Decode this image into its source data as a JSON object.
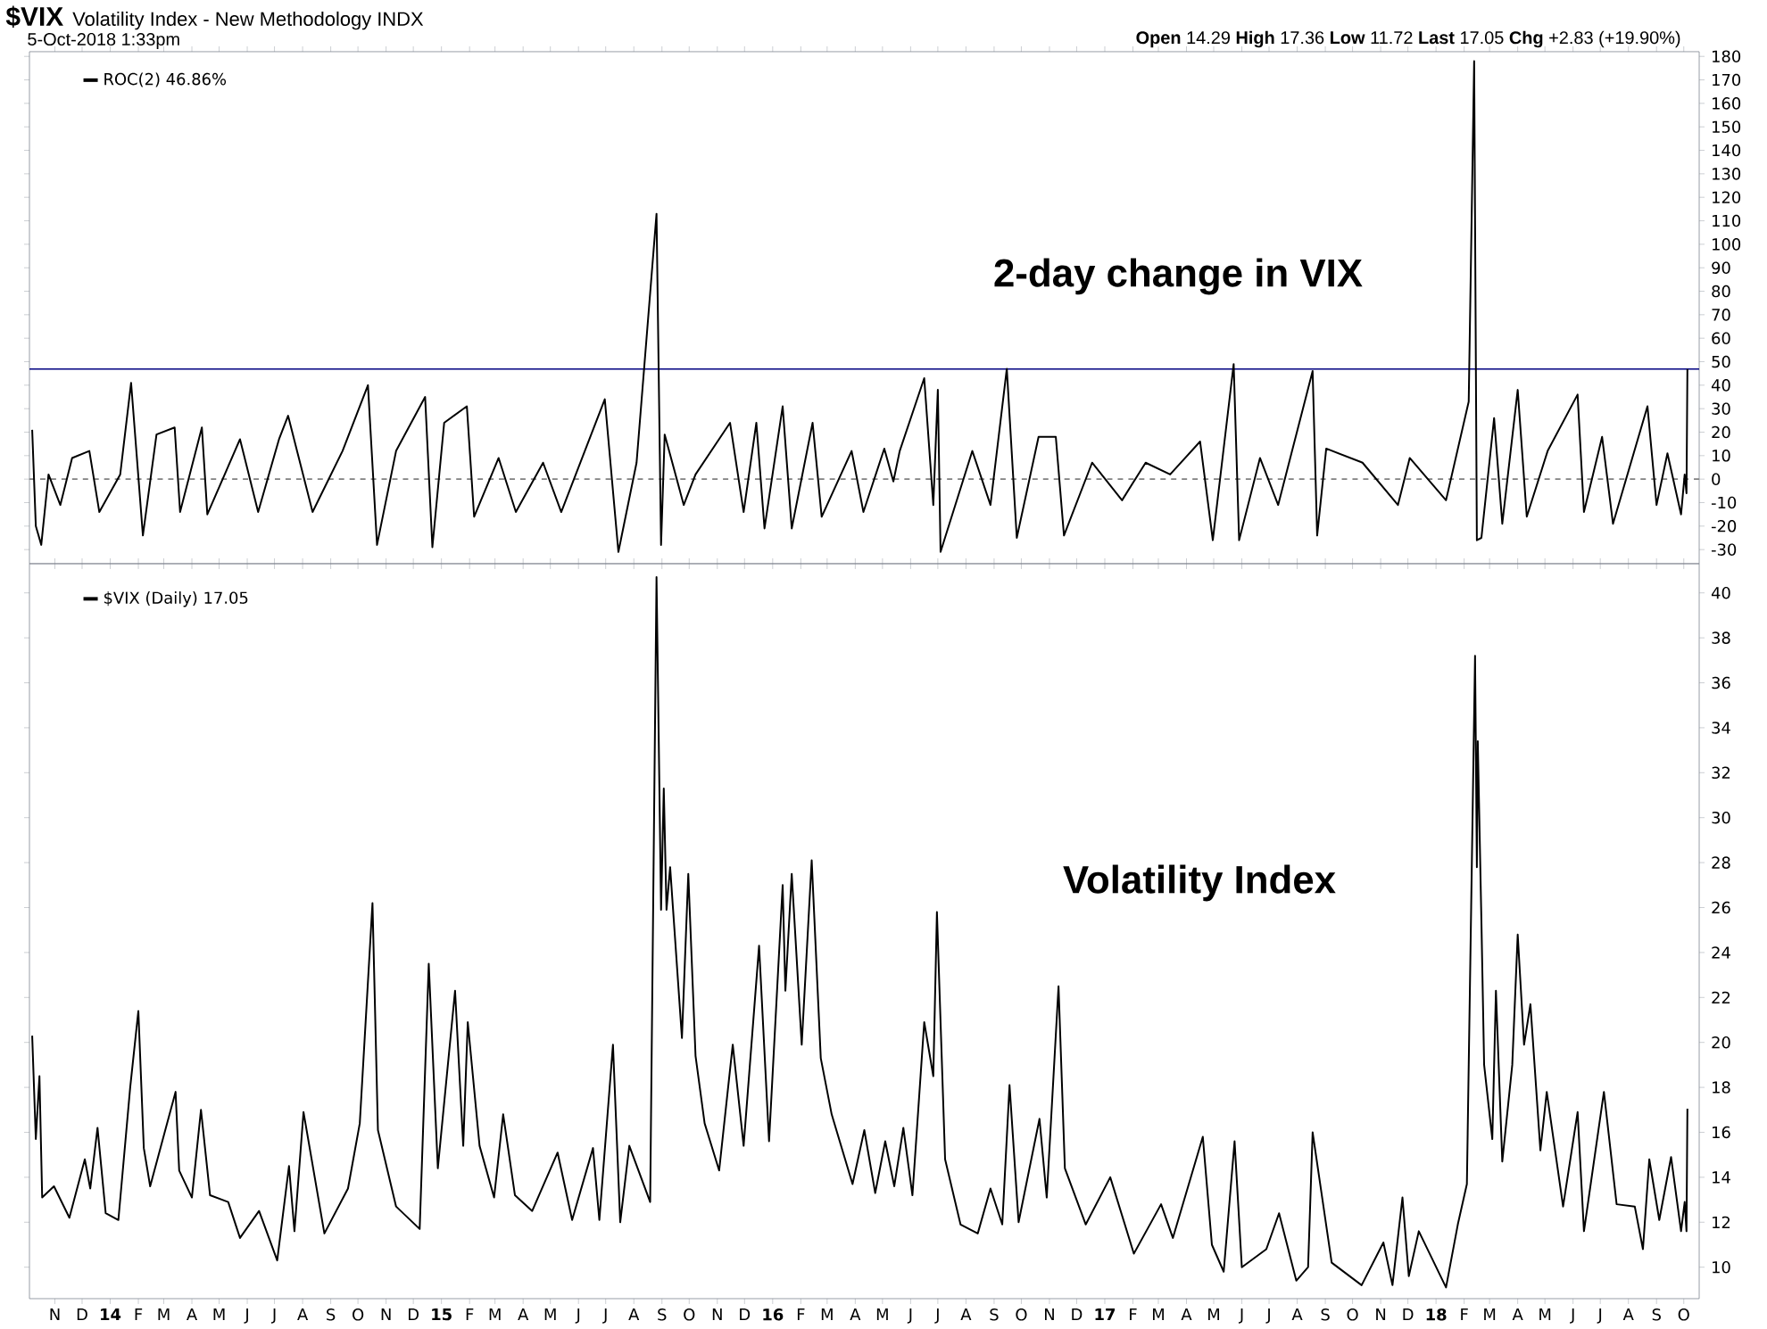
{
  "chart_data": [
    {
      "type": "line",
      "title": "$VIX",
      "subtitle": "Volatility Index - New Methodology INDX",
      "annotations": [
        "5-Oct-2018 1:33pm",
        "**Open** 14.29 **High** 17.36 **Low** 11.72 **Last** 17.05 **Chg** +2.83 (+19.90%)",
        "2-day change in VIX"
      ],
      "x": [
        "2013-10-07",
        "2013-10-11",
        "2013-10-17",
        "2013-10-25",
        "2013-11-07",
        "2013-11-20",
        "2013-12-09",
        "2013-12-20",
        "2014-01-12",
        "2014-01-24",
        "2014-02-06",
        "2014-02-21",
        "2014-03-13",
        "2014-03-19",
        "2014-04-12",
        "2014-04-18",
        "2014-05-24",
        "2014-06-13",
        "2014-07-06",
        "2014-07-16",
        "2014-08-12",
        "2014-09-14",
        "2014-10-12",
        "2014-10-22",
        "2014-11-12",
        "2014-12-14",
        "2014-12-22",
        "2015-01-04",
        "2015-01-29",
        "2015-02-06",
        "2015-03-05",
        "2015-03-24",
        "2015-04-23",
        "2015-05-13",
        "2015-06-30",
        "2015-07-15",
        "2015-08-04",
        "2015-08-26",
        "2015-08-31",
        "2015-09-04",
        "2015-09-25",
        "2015-10-08",
        "2015-11-15",
        "2015-11-30",
        "2015-12-14",
        "2015-12-23",
        "2016-01-12",
        "2016-01-22",
        "2016-02-14",
        "2016-02-24",
        "2016-03-28",
        "2016-04-10",
        "2016-05-03",
        "2016-05-13",
        "2016-05-20",
        "2016-06-16",
        "2016-06-26",
        "2016-07-01",
        "2016-07-04",
        "2016-08-08",
        "2016-08-28",
        "2016-09-15",
        "2016-09-26",
        "2016-10-20",
        "2016-11-08",
        "2016-11-17",
        "2016-12-18",
        "2017-01-20",
        "2017-02-15",
        "2017-03-14",
        "2017-04-16",
        "2017-04-30",
        "2017-05-23",
        "2017-05-29",
        "2017-06-21",
        "2017-07-11",
        "2017-08-18",
        "2017-08-23",
        "2017-09-02",
        "2017-10-12",
        "2017-11-20",
        "2017-12-03",
        "2018-01-12",
        "2018-02-06",
        "2018-02-12",
        "2018-02-15",
        "2018-02-20",
        "2018-03-06",
        "2018-03-15",
        "2018-04-01",
        "2018-04-11",
        "2018-05-04",
        "2018-06-06",
        "2018-06-13",
        "2018-07-03",
        "2018-07-15",
        "2018-08-22",
        "2018-09-01",
        "2018-09-13",
        "2018-09-28",
        "2018-10-02",
        "2018-10-04",
        "2018-10-05"
      ],
      "series": [
        {
          "name": "ROC(2) 46.86%",
          "color": "#000000",
          "values": [
            21,
            -20,
            -28,
            2,
            -11,
            9,
            12,
            -14,
            2,
            41,
            -24,
            19,
            22,
            -14,
            22,
            -15,
            17,
            -14,
            17,
            27,
            -14,
            12,
            40,
            -28,
            12,
            35,
            -29,
            24,
            31,
            -16,
            9,
            -14,
            7,
            -14,
            34,
            -31,
            7,
            113,
            -28,
            19,
            -11,
            2,
            24,
            -14,
            24,
            -21,
            31,
            -21,
            24,
            -16,
            12,
            -14,
            13,
            -1,
            12,
            43,
            -11,
            38,
            -31,
            12,
            -11,
            47,
            -25,
            18,
            18,
            -24,
            7,
            -9,
            7,
            2,
            16,
            -26,
            49,
            -26,
            9,
            -11,
            46,
            -24,
            13,
            7,
            -11,
            9,
            -9,
            33,
            178,
            -26,
            -25,
            26,
            -19,
            38,
            -16,
            12,
            36,
            -14,
            18,
            -19,
            31,
            -11,
            11,
            -15,
            2,
            -6,
            46.86
          ]
        }
      ],
      "xlim": [
        "2013-10-04",
        "2018-10-18"
      ],
      "xticks": [
        "2013-11-01",
        "2013-12-01",
        "2014-01-01",
        "2014-02-01",
        "2014-03-01",
        "2014-04-01",
        "2014-05-01",
        "2014-06-01",
        "2014-07-01",
        "2014-08-01",
        "2014-09-01",
        "2014-10-01",
        "2014-11-01",
        "2014-12-01",
        "2015-01-01",
        "2015-02-01",
        "2015-03-01",
        "2015-04-01",
        "2015-05-01",
        "2015-06-01",
        "2015-07-01",
        "2015-08-01",
        "2015-09-01",
        "2015-10-01",
        "2015-11-01",
        "2015-12-01",
        "2016-01-01",
        "2016-02-01",
        "2016-03-01",
        "2016-04-01",
        "2016-05-01",
        "2016-06-01",
        "2016-07-01",
        "2016-08-01",
        "2016-09-01",
        "2016-10-01",
        "2016-11-01",
        "2016-12-01",
        "2017-01-01",
        "2017-02-01",
        "2017-03-01",
        "2017-04-01",
        "2017-05-01",
        "2017-06-01",
        "2017-07-01",
        "2017-08-01",
        "2017-09-01",
        "2017-10-01",
        "2017-11-01",
        "2017-12-01",
        "2018-01-01",
        "2018-02-01",
        "2018-03-01",
        "2018-04-01",
        "2018-05-01",
        "2018-06-01",
        "2018-07-01",
        "2018-08-01",
        "2018-09-01",
        "2018-10-01"
      ],
      "ylim": [
        -36,
        182
      ],
      "yticks": [
        -30,
        -20,
        -10,
        0,
        10,
        20,
        30,
        40,
        50,
        60,
        70,
        80,
        90,
        100,
        110,
        120,
        130,
        140,
        150,
        160,
        170,
        180
      ],
      "tick_labels": "y",
      "legend": "top left",
      "ref_lines": [
        {
          "axis": "y",
          "value": 46.86,
          "color": "#000080"
        },
        {
          "axis": "y",
          "value": 0,
          "color": "#808080",
          "line_style": "dashed"
        }
      ]
    },
    {
      "type": "line",
      "annotations": [
        "Volatility Index"
      ],
      "x": [
        "2013-10-07",
        "2013-10-11",
        "2013-10-15",
        "2013-10-18",
        "2013-10-31",
        "2013-11-17",
        "2013-12-04",
        "2013-12-10",
        "2013-12-18",
        "2013-12-27",
        "2014-01-10",
        "2014-01-23",
        "2014-02-01",
        "2014-02-07",
        "2014-02-14",
        "2014-03-14",
        "2014-03-18",
        "2014-04-01",
        "2014-04-11",
        "2014-04-21",
        "2014-05-11",
        "2014-05-24",
        "2014-06-14",
        "2014-07-04",
        "2014-07-17",
        "2014-07-23",
        "2014-08-02",
        "2014-08-25",
        "2014-09-20",
        "2014-10-03",
        "2014-10-17",
        "2014-10-23",
        "2014-11-12",
        "2014-12-08",
        "2014-12-18",
        "2014-12-28",
        "2015-01-16",
        "2015-01-25",
        "2015-01-30",
        "2015-02-12",
        "2015-02-28",
        "2015-03-10",
        "2015-03-23",
        "2015-04-11",
        "2015-05-09",
        "2015-05-25",
        "2015-06-17",
        "2015-06-24",
        "2015-07-09",
        "2015-07-17",
        "2015-07-27",
        "2015-08-19",
        "2015-08-26",
        "2015-08-31",
        "2015-09-03",
        "2015-09-06",
        "2015-09-10",
        "2015-09-23",
        "2015-09-30",
        "2015-10-08",
        "2015-10-18",
        "2015-11-03",
        "2015-11-18",
        "2015-11-30",
        "2015-12-17",
        "2015-12-28",
        "2016-01-12",
        "2016-01-15",
        "2016-01-22",
        "2016-02-02",
        "2016-02-13",
        "2016-02-23",
        "2016-03-06",
        "2016-03-29",
        "2016-04-11",
        "2016-04-23",
        "2016-05-04",
        "2016-05-14",
        "2016-05-24",
        "2016-06-03",
        "2016-06-16",
        "2016-06-26",
        "2016-06-30",
        "2016-07-09",
        "2016-07-26",
        "2016-08-14",
        "2016-08-28",
        "2016-09-10",
        "2016-09-18",
        "2016-09-28",
        "2016-10-21",
        "2016-10-29",
        "2016-11-11",
        "2016-11-18",
        "2016-12-11",
        "2017-01-07",
        "2017-02-02",
        "2017-03-04",
        "2017-03-17",
        "2017-04-19",
        "2017-04-29",
        "2017-05-12",
        "2017-05-24",
        "2017-06-01",
        "2017-06-28",
        "2017-07-12",
        "2017-07-31",
        "2017-08-13",
        "2017-08-18",
        "2017-09-08",
        "2017-10-11",
        "2017-11-04",
        "2017-11-14",
        "2017-11-25",
        "2017-12-02",
        "2017-12-13",
        "2018-01-12",
        "2018-01-25",
        "2018-02-04",
        "2018-02-13",
        "2018-02-15",
        "2018-02-16",
        "2018-02-20",
        "2018-02-23",
        "2018-03-04",
        "2018-03-08",
        "2018-03-15",
        "2018-03-26",
        "2018-04-01",
        "2018-04-08",
        "2018-04-15",
        "2018-04-26",
        "2018-05-03",
        "2018-05-21",
        "2018-06-06",
        "2018-06-13",
        "2018-07-05",
        "2018-07-19",
        "2018-08-08",
        "2018-08-17",
        "2018-08-24",
        "2018-09-04",
        "2018-09-17",
        "2018-09-28",
        "2018-10-02",
        "2018-10-04",
        "2018-10-05"
      ],
      "series": [
        {
          "name": "$VIX (Daily) 17.05",
          "color": "#000000",
          "values": [
            20.3,
            15.7,
            18.5,
            13.1,
            13.6,
            12.2,
            14.8,
            13.5,
            16.2,
            12.4,
            12.1,
            18.0,
            21.4,
            15.3,
            13.6,
            17.8,
            14.3,
            13.1,
            17.0,
            13.2,
            12.9,
            11.3,
            12.5,
            10.3,
            14.5,
            11.6,
            16.9,
            11.5,
            13.5,
            16.4,
            26.2,
            16.1,
            12.7,
            11.7,
            23.5,
            14.4,
            22.3,
            15.4,
            20.9,
            15.4,
            13.1,
            16.8,
            13.2,
            12.5,
            15.1,
            12.1,
            15.3,
            12.1,
            19.9,
            12.0,
            15.4,
            12.9,
            40.7,
            25.9,
            31.3,
            25.9,
            27.8,
            20.2,
            27.5,
            19.4,
            16.4,
            14.3,
            19.9,
            15.4,
            24.3,
            15.6,
            27.0,
            22.3,
            27.5,
            19.9,
            28.1,
            19.3,
            16.8,
            13.7,
            16.1,
            13.3,
            15.6,
            13.6,
            16.2,
            13.2,
            20.9,
            18.5,
            25.8,
            14.8,
            11.9,
            11.5,
            13.5,
            11.9,
            18.1,
            12.0,
            16.6,
            13.1,
            22.5,
            14.4,
            11.9,
            14.0,
            10.6,
            12.8,
            11.3,
            15.8,
            11.0,
            9.8,
            15.6,
            10.0,
            10.8,
            12.4,
            9.4,
            10.0,
            16.0,
            10.2,
            9.2,
            11.1,
            9.2,
            13.1,
            9.6,
            11.6,
            9.1,
            11.9,
            13.7,
            37.2,
            27.8,
            33.4,
            25.4,
            19.0,
            15.7,
            22.3,
            14.7,
            19.0,
            24.8,
            19.9,
            21.7,
            15.2,
            17.8,
            12.7,
            16.9,
            11.6,
            17.8,
            12.8,
            12.7,
            10.8,
            14.8,
            12.1,
            14.9,
            11.6,
            12.9,
            11.6,
            17.05
          ]
        }
      ],
      "xlim": [
        "2013-10-04",
        "2018-10-18"
      ],
      "xticks": [
        {
          "value": "2013-11-01",
          "label": "N"
        },
        {
          "value": "2013-12-01",
          "label": "D"
        },
        {
          "value": "2014-01-01",
          "label": "14"
        },
        {
          "value": "2014-02-01",
          "label": "F"
        },
        {
          "value": "2014-03-01",
          "label": "M"
        },
        {
          "value": "2014-04-01",
          "label": "A"
        },
        {
          "value": "2014-05-01",
          "label": "M"
        },
        {
          "value": "2014-06-01",
          "label": "J"
        },
        {
          "value": "2014-07-01",
          "label": "J"
        },
        {
          "value": "2014-08-01",
          "label": "A"
        },
        {
          "value": "2014-09-01",
          "label": "S"
        },
        {
          "value": "2014-10-01",
          "label": "O"
        },
        {
          "value": "2014-11-01",
          "label": "N"
        },
        {
          "value": "2014-12-01",
          "label": "D"
        },
        {
          "value": "2015-01-01",
          "label": "15"
        },
        {
          "value": "2015-02-01",
          "label": "F"
        },
        {
          "value": "2015-03-01",
          "label": "M"
        },
        {
          "value": "2015-04-01",
          "label": "A"
        },
        {
          "value": "2015-05-01",
          "label": "M"
        },
        {
          "value": "2015-06-01",
          "label": "J"
        },
        {
          "value": "2015-07-01",
          "label": "J"
        },
        {
          "value": "2015-08-01",
          "label": "A"
        },
        {
          "value": "2015-09-01",
          "label": "S"
        },
        {
          "value": "2015-10-01",
          "label": "O"
        },
        {
          "value": "2015-11-01",
          "label": "N"
        },
        {
          "value": "2015-12-01",
          "label": "D"
        },
        {
          "value": "2016-01-01",
          "label": "16"
        },
        {
          "value": "2016-02-01",
          "label": "F"
        },
        {
          "value": "2016-03-01",
          "label": "M"
        },
        {
          "value": "2016-04-01",
          "label": "A"
        },
        {
          "value": "2016-05-01",
          "label": "M"
        },
        {
          "value": "2016-06-01",
          "label": "J"
        },
        {
          "value": "2016-07-01",
          "label": "J"
        },
        {
          "value": "2016-08-01",
          "label": "A"
        },
        {
          "value": "2016-09-01",
          "label": "S"
        },
        {
          "value": "2016-10-01",
          "label": "O"
        },
        {
          "value": "2016-11-01",
          "label": "N"
        },
        {
          "value": "2016-12-01",
          "label": "D"
        },
        {
          "value": "2017-01-01",
          "label": "17"
        },
        {
          "value": "2017-02-01",
          "label": "F"
        },
        {
          "value": "2017-03-01",
          "label": "M"
        },
        {
          "value": "2017-04-01",
          "label": "A"
        },
        {
          "value": "2017-05-01",
          "label": "M"
        },
        {
          "value": "2017-06-01",
          "label": "J"
        },
        {
          "value": "2017-07-01",
          "label": "J"
        },
        {
          "value": "2017-08-01",
          "label": "A"
        },
        {
          "value": "2017-09-01",
          "label": "S"
        },
        {
          "value": "2017-10-01",
          "label": "O"
        },
        {
          "value": "2017-11-01",
          "label": "N"
        },
        {
          "value": "2017-12-01",
          "label": "D"
        },
        {
          "value": "2018-01-01",
          "label": "18"
        },
        {
          "value": "2018-02-01",
          "label": "F"
        },
        {
          "value": "2018-03-01",
          "label": "M"
        },
        {
          "value": "2018-04-01",
          "label": "A"
        },
        {
          "value": "2018-05-01",
          "label": "M"
        },
        {
          "value": "2018-06-01",
          "label": "J"
        },
        {
          "value": "2018-07-01",
          "label": "J"
        },
        {
          "value": "2018-08-01",
          "label": "A"
        },
        {
          "value": "2018-09-01",
          "label": "S"
        },
        {
          "value": "2018-10-01",
          "label": "O"
        }
      ],
      "ylim": [
        8.6,
        41.3
      ],
      "yticks": [
        10,
        12,
        14,
        16,
        18,
        20,
        22,
        24,
        26,
        28,
        30,
        32,
        34,
        36,
        38,
        40
      ],
      "legend": "top left"
    }
  ]
}
